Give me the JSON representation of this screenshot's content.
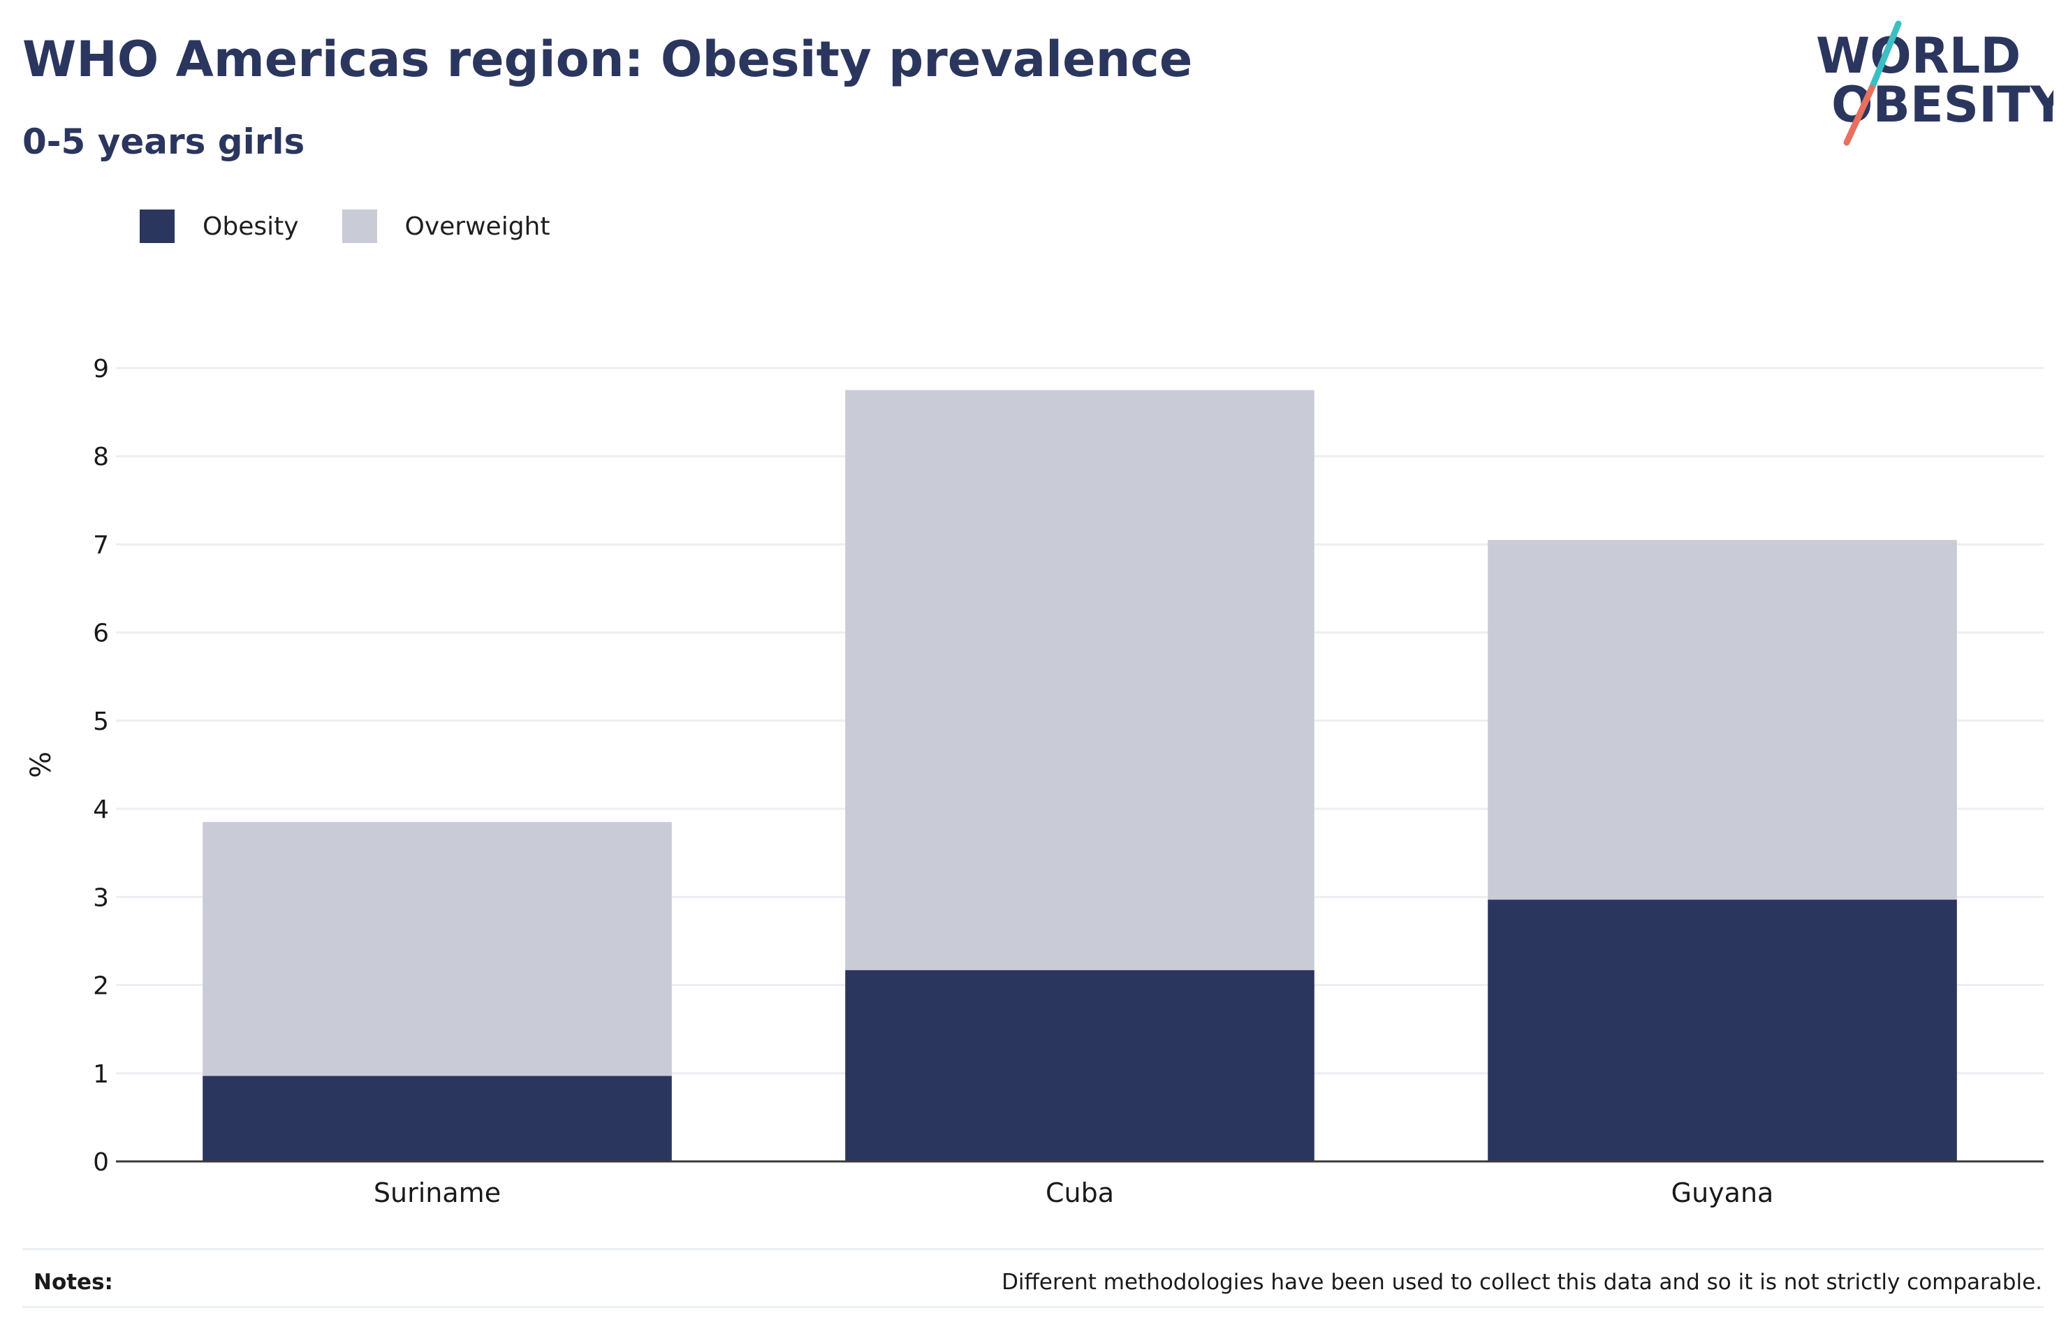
{
  "header": {
    "title": "WHO Americas region: Obesity prevalence",
    "subtitle": "0-5 years girls"
  },
  "logo": {
    "line1": "WORLD",
    "line2": "OBESITY",
    "text_color": "#2b365f",
    "slash_top_color": "#3bbfc2",
    "slash_bottom_color": "#e8705e"
  },
  "legend": {
    "items": [
      {
        "label": "Obesity",
        "color": "#2b365f"
      },
      {
        "label": "Overweight",
        "color": "#c9cbd6"
      }
    ]
  },
  "footer": {
    "notes_label": "Notes:",
    "notes_text": "Different methodologies have been used to collect this data and so it is not strictly comparable."
  },
  "chart_data": {
    "type": "bar",
    "stacked": true,
    "categories": [
      "Suriname",
      "Cuba",
      "Guyana"
    ],
    "series": [
      {
        "name": "Obesity",
        "color": "#2b365f",
        "values": [
          0.97,
          2.17,
          2.97
        ]
      },
      {
        "name": "Overweight",
        "color": "#c9cbd6",
        "values": [
          2.88,
          6.58,
          4.08
        ]
      }
    ],
    "totals": [
      3.85,
      8.75,
      7.05
    ],
    "title": "WHO Americas region: Obesity prevalence",
    "subtitle": "0-5 years girls",
    "xlabel": "",
    "ylabel": "%",
    "ylim": [
      0,
      9
    ],
    "yticks": [
      0,
      1,
      2,
      3,
      4,
      5,
      6,
      7,
      8,
      9
    ],
    "grid": true,
    "legend_position": "top-left"
  }
}
